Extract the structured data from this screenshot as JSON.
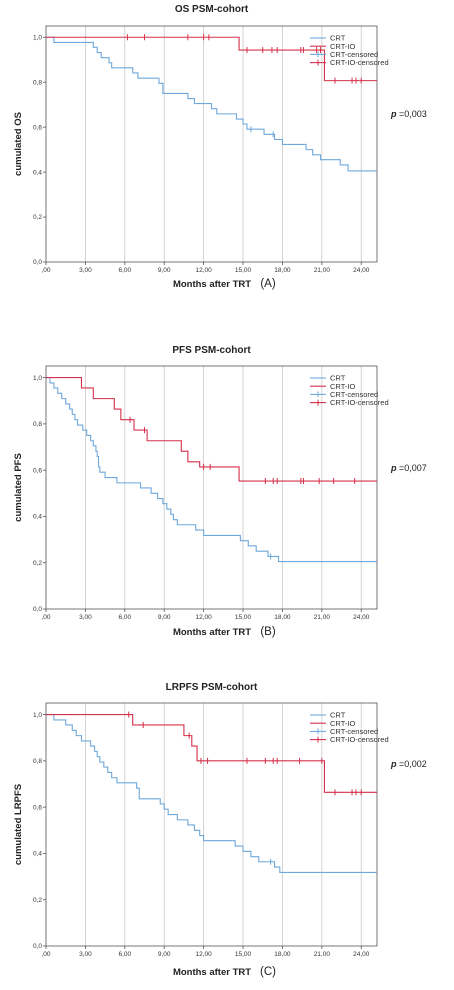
{
  "figure": {
    "colors": {
      "crt": "#6fa8dc",
      "crtio": "#d6304a",
      "grid": "#c8c8c8",
      "axis": "#555555"
    }
  },
  "chart_data": [
    {
      "type": "line",
      "title": "OS PSM-cohort",
      "xlabel": "Months after TRT",
      "ylabel": "cumulated OS",
      "panel_label": "(A)",
      "p_label": "p",
      "p_value": "=0,003",
      "xlim": [
        0,
        25.2
      ],
      "ylim": [
        0,
        1.05
      ],
      "x_ticks": [
        0,
        3,
        6,
        9,
        12,
        15,
        18,
        21,
        24
      ],
      "x_tick_labels": [
        ",00",
        "3,00",
        "6,00",
        "9,00",
        "12,00",
        "15,00",
        "18,00",
        "21,00",
        "24,00"
      ],
      "y_ticks": [
        0,
        0.2,
        0.4,
        0.6,
        0.8,
        1.0
      ],
      "y_tick_labels": [
        "0,0",
        "0,2",
        "0,4",
        "0,6",
        "0,8",
        "1,0"
      ],
      "grid": "vertical",
      "legend_position": "top-right",
      "legend": [
        "CRT",
        "CRT-IO",
        "CRT-censored",
        "CRT-IO-censored"
      ],
      "series": [
        {
          "name": "CRT",
          "color": "#6fa8dc",
          "steps": [
            [
              0,
              1.0
            ],
            [
              0.6,
              0.977
            ],
            [
              3.6,
              0.955
            ],
            [
              3.9,
              0.932
            ],
            [
              4.2,
              0.909
            ],
            [
              4.8,
              0.886
            ],
            [
              5.0,
              0.864
            ],
            [
              6.6,
              0.841
            ],
            [
              7.0,
              0.818
            ],
            [
              8.6,
              0.795
            ],
            [
              8.9,
              0.75
            ],
            [
              10.8,
              0.727
            ],
            [
              11.3,
              0.705
            ],
            [
              12.6,
              0.682
            ],
            [
              13.0,
              0.659
            ],
            [
              14.5,
              0.636
            ],
            [
              15.0,
              0.614
            ],
            [
              15.3,
              0.591
            ],
            [
              16.6,
              0.568
            ],
            [
              17.4,
              0.545
            ],
            [
              18.0,
              0.523
            ],
            [
              19.8,
              0.5
            ],
            [
              20.3,
              0.477
            ],
            [
              20.9,
              0.455
            ],
            [
              22.4,
              0.432
            ],
            [
              23.0,
              0.405
            ]
          ],
          "end_x": 25.2,
          "censored": [
            [
              15.6,
              0.591
            ],
            [
              17.3,
              0.568
            ]
          ]
        },
        {
          "name": "CRT-IO",
          "color": "#d6304a",
          "steps": [
            [
              0,
              1.0
            ],
            [
              14.7,
              0.943
            ],
            [
              21.2,
              0.807
            ]
          ],
          "end_x": 25.2,
          "censored": [
            [
              6.2,
              1.0
            ],
            [
              7.5,
              1.0
            ],
            [
              10.8,
              1.0
            ],
            [
              12.0,
              1.0
            ],
            [
              12.4,
              1.0
            ],
            [
              15.3,
              0.943
            ],
            [
              16.5,
              0.943
            ],
            [
              17.2,
              0.943
            ],
            [
              17.6,
              0.943
            ],
            [
              19.4,
              0.943
            ],
            [
              19.6,
              0.943
            ],
            [
              20.6,
              0.943
            ],
            [
              20.9,
              0.943
            ],
            [
              22.0,
              0.807
            ],
            [
              23.3,
              0.807
            ],
            [
              23.6,
              0.807
            ],
            [
              24.0,
              0.807
            ]
          ]
        }
      ]
    },
    {
      "type": "line",
      "title": "PFS PSM-cohort",
      "xlabel": "Months after TRT",
      "ylabel": "cumulated PFS",
      "panel_label": "(B)",
      "p_label": "p",
      "p_value": "=0,007",
      "xlim": [
        0,
        25.2
      ],
      "ylim": [
        0,
        1.05
      ],
      "x_ticks": [
        0,
        3,
        6,
        9,
        12,
        15,
        18,
        21,
        24
      ],
      "x_tick_labels": [
        ",00",
        "3,00",
        "6,00",
        "9,00",
        "12,00",
        "15,00",
        "18,00",
        "21,00",
        "24,00"
      ],
      "y_ticks": [
        0,
        0.2,
        0.4,
        0.6,
        0.8,
        1.0
      ],
      "y_tick_labels": [
        "0,0",
        "0,2",
        "0,4",
        "0,6",
        "0,8",
        "1,0"
      ],
      "grid": "vertical",
      "legend_position": "top-right",
      "legend": [
        "CRT",
        "CRT-IO",
        "CRT-censored",
        "CRT-IO-censored"
      ],
      "series": [
        {
          "name": "CRT",
          "color": "#6fa8dc",
          "steps": [
            [
              0,
              1.0
            ],
            [
              0.3,
              0.977
            ],
            [
              0.6,
              0.955
            ],
            [
              0.9,
              0.932
            ],
            [
              1.2,
              0.909
            ],
            [
              1.5,
              0.886
            ],
            [
              1.8,
              0.864
            ],
            [
              2.0,
              0.841
            ],
            [
              2.2,
              0.818
            ],
            [
              2.4,
              0.795
            ],
            [
              2.8,
              0.773
            ],
            [
              3.1,
              0.75
            ],
            [
              3.4,
              0.727
            ],
            [
              3.6,
              0.705
            ],
            [
              3.8,
              0.682
            ],
            [
              3.9,
              0.659
            ],
            [
              4.0,
              0.614
            ],
            [
              4.1,
              0.591
            ],
            [
              4.5,
              0.568
            ],
            [
              5.4,
              0.545
            ],
            [
              7.2,
              0.523
            ],
            [
              8.0,
              0.5
            ],
            [
              8.5,
              0.477
            ],
            [
              8.9,
              0.455
            ],
            [
              9.2,
              0.432
            ],
            [
              9.5,
              0.409
            ],
            [
              9.7,
              0.386
            ],
            [
              10.0,
              0.364
            ],
            [
              11.4,
              0.341
            ],
            [
              12.0,
              0.318
            ],
            [
              14.8,
              0.295
            ],
            [
              15.4,
              0.273
            ],
            [
              16.0,
              0.25
            ],
            [
              16.9,
              0.227
            ],
            [
              17.7,
              0.205
            ]
          ],
          "end_x": 25.2,
          "censored": [
            [
              17.1,
              0.227
            ]
          ]
        },
        {
          "name": "CRT-IO",
          "color": "#d6304a",
          "steps": [
            [
              0,
              1.0
            ],
            [
              2.7,
              0.955
            ],
            [
              3.6,
              0.909
            ],
            [
              5.2,
              0.864
            ],
            [
              5.7,
              0.818
            ],
            [
              6.7,
              0.773
            ],
            [
              7.7,
              0.727
            ],
            [
              10.3,
              0.682
            ],
            [
              10.8,
              0.636
            ],
            [
              11.7,
              0.614
            ],
            [
              14.7,
              0.553
            ]
          ],
          "end_x": 25.2,
          "censored": [
            [
              6.4,
              0.818
            ],
            [
              7.5,
              0.773
            ],
            [
              12.0,
              0.614
            ],
            [
              12.5,
              0.614
            ],
            [
              16.7,
              0.553
            ],
            [
              17.3,
              0.553
            ],
            [
              17.6,
              0.553
            ],
            [
              19.4,
              0.553
            ],
            [
              19.6,
              0.553
            ],
            [
              20.8,
              0.553
            ],
            [
              21.9,
              0.553
            ],
            [
              23.5,
              0.553
            ]
          ]
        }
      ]
    },
    {
      "type": "line",
      "title": "LRPFS PSM-cohort",
      "xlabel": "Months after TRT",
      "ylabel": "cumulated LRPFS",
      "panel_label": "(C)",
      "p_label": "p",
      "p_value": "=0,002",
      "xlim": [
        0,
        25.2
      ],
      "ylim": [
        0,
        1.05
      ],
      "x_ticks": [
        0,
        3,
        6,
        9,
        12,
        15,
        18,
        21,
        24
      ],
      "x_tick_labels": [
        ",00",
        "3,00",
        "6,00",
        "9,00",
        "12,00",
        "15,00",
        "18,00",
        "21,00",
        "24,00"
      ],
      "y_ticks": [
        0,
        0.2,
        0.4,
        0.6,
        0.8,
        1.0
      ],
      "y_tick_labels": [
        "0,0",
        "0,2",
        "0,4",
        "0,6",
        "0,8",
        "1,0"
      ],
      "grid": "vertical",
      "legend_position": "top-right",
      "legend": [
        "CRT",
        "CRT-IO",
        "CRT-censored",
        "CRT-IO-censored"
      ],
      "series": [
        {
          "name": "CRT",
          "color": "#6fa8dc",
          "steps": [
            [
              0,
              1.0
            ],
            [
              0.6,
              0.977
            ],
            [
              1.5,
              0.955
            ],
            [
              2.0,
              0.932
            ],
            [
              2.3,
              0.909
            ],
            [
              2.7,
              0.886
            ],
            [
              3.4,
              0.864
            ],
            [
              3.7,
              0.841
            ],
            [
              3.9,
              0.818
            ],
            [
              4.1,
              0.795
            ],
            [
              4.4,
              0.773
            ],
            [
              4.7,
              0.75
            ],
            [
              5.0,
              0.727
            ],
            [
              5.4,
              0.705
            ],
            [
              6.9,
              0.682
            ],
            [
              7.1,
              0.636
            ],
            [
              8.7,
              0.614
            ],
            [
              9.0,
              0.591
            ],
            [
              9.3,
              0.568
            ],
            [
              10.0,
              0.545
            ],
            [
              10.8,
              0.523
            ],
            [
              11.3,
              0.5
            ],
            [
              11.7,
              0.477
            ],
            [
              12.0,
              0.455
            ],
            [
              14.4,
              0.432
            ],
            [
              15.0,
              0.409
            ],
            [
              15.6,
              0.386
            ],
            [
              16.2,
              0.364
            ],
            [
              17.4,
              0.341
            ],
            [
              17.8,
              0.318
            ]
          ],
          "end_x": 25.2,
          "censored": [
            [
              17.1,
              0.364
            ]
          ]
        },
        {
          "name": "CRT-IO",
          "color": "#d6304a",
          "steps": [
            [
              0,
              1.0
            ],
            [
              6.6,
              0.955
            ],
            [
              10.5,
              0.909
            ],
            [
              11.1,
              0.864
            ],
            [
              11.5,
              0.8
            ],
            [
              21.2,
              0.664
            ]
          ],
          "end_x": 25.2,
          "censored": [
            [
              6.3,
              1.0
            ],
            [
              7.4,
              0.955
            ],
            [
              10.9,
              0.909
            ],
            [
              11.8,
              0.8
            ],
            [
              12.3,
              0.8
            ],
            [
              15.3,
              0.8
            ],
            [
              16.7,
              0.8
            ],
            [
              17.3,
              0.8
            ],
            [
              17.6,
              0.8
            ],
            [
              19.3,
              0.8
            ],
            [
              21.0,
              0.8
            ],
            [
              22.0,
              0.664
            ],
            [
              23.3,
              0.664
            ],
            [
              23.6,
              0.664
            ],
            [
              24.0,
              0.664
            ]
          ]
        }
      ]
    }
  ]
}
